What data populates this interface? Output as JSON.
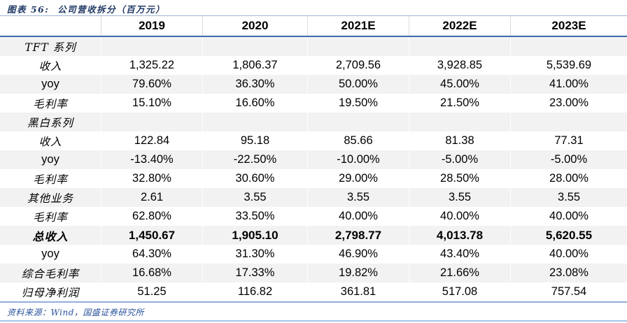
{
  "title": "图表 56:  公司营收拆分（百万元）",
  "footer": "资料来源：Wind，国盛证券研究所",
  "colors": {
    "title_blue": "#1F3864",
    "footer_blue": "#28529B",
    "stripe_gray": "#F2F2F2",
    "header_underline_blue": "#3A6BAE",
    "table_rule_blue": "#93AFD7",
    "page_bottom_rule_blue": "#A9C4E4"
  },
  "table": {
    "columns": [
      "",
      "2019",
      "2020",
      "2021E",
      "2022E",
      "2023E"
    ],
    "rows": [
      {
        "label": "TFT 系列",
        "bold": false,
        "values": [
          "",
          "",
          "",
          "",
          ""
        ]
      },
      {
        "label": "收入",
        "bold": false,
        "values": [
          "1,325.22",
          "1,806.37",
          "2,709.56",
          "3,928.85",
          "5,539.69"
        ]
      },
      {
        "label": "yoy",
        "bold": false,
        "values": [
          "79.60%",
          "36.30%",
          "50.00%",
          "45.00%",
          "41.00%"
        ]
      },
      {
        "label": "毛利率",
        "bold": false,
        "values": [
          "15.10%",
          "16.60%",
          "19.50%",
          "21.50%",
          "23.00%"
        ]
      },
      {
        "label": "黑白系列",
        "bold": false,
        "values": [
          "",
          "",
          "",
          "",
          ""
        ]
      },
      {
        "label": "收入",
        "bold": false,
        "values": [
          "122.84",
          "95.18",
          "85.66",
          "81.38",
          "77.31"
        ]
      },
      {
        "label": "yoy",
        "bold": false,
        "values": [
          "-13.40%",
          "-22.50%",
          "-10.00%",
          "-5.00%",
          "-5.00%"
        ]
      },
      {
        "label": "毛利率",
        "bold": false,
        "values": [
          "32.80%",
          "30.60%",
          "29.00%",
          "28.50%",
          "28.00%"
        ]
      },
      {
        "label": "其他业务",
        "bold": false,
        "values": [
          "2.61",
          "3.55",
          "3.55",
          "3.55",
          "3.55"
        ]
      },
      {
        "label": "毛利率",
        "bold": false,
        "values": [
          "62.80%",
          "33.50%",
          "40.00%",
          "40.00%",
          "40.00%"
        ]
      },
      {
        "label": "总收入",
        "bold": true,
        "values": [
          "1,450.67",
          "1,905.10",
          "2,798.77",
          "4,013.78",
          "5,620.55"
        ]
      },
      {
        "label": "yoy",
        "bold": false,
        "values": [
          "64.30%",
          "31.30%",
          "46.90%",
          "43.40%",
          "40.00%"
        ]
      },
      {
        "label": "综合毛利率",
        "bold": false,
        "values": [
          "16.68%",
          "17.33%",
          "19.82%",
          "21.66%",
          "23.08%"
        ]
      },
      {
        "label": "归母净利润",
        "bold": false,
        "values": [
          "51.25",
          "116.82",
          "361.81",
          "517.08",
          "757.54"
        ]
      }
    ]
  }
}
